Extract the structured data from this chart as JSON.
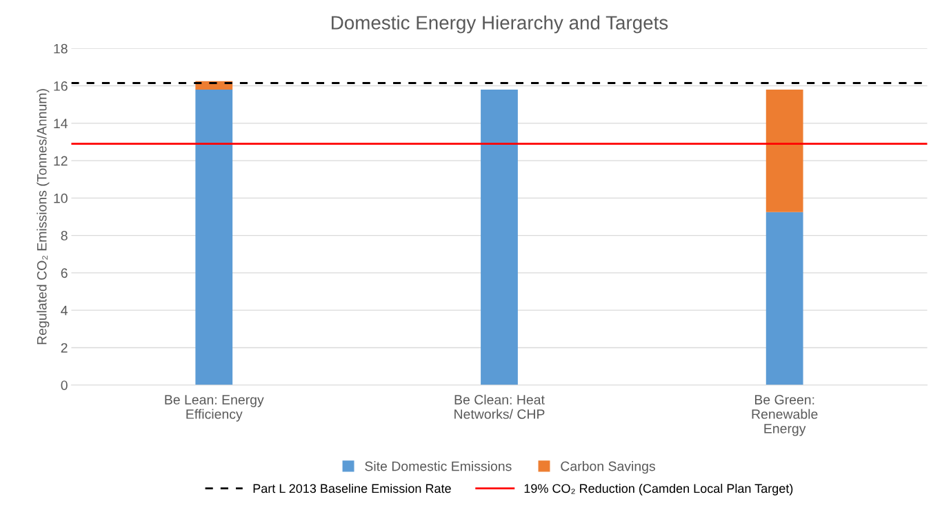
{
  "chart_data": {
    "type": "bar",
    "title": "Domestic Energy Hierarchy and Targets",
    "ylabel": "Regulated CO₂ Emissions (Tonnes/Annum)",
    "categories": [
      "Be Lean: Energy\nEfficiency",
      "Be Clean: Heat\nNetworks/ CHP",
      "Be Green:\nRenewable\nEnergy"
    ],
    "series": [
      {
        "name": "Site Domestic Emissions",
        "color": "#5b9bd5",
        "values": [
          15.8,
          15.8,
          9.25
        ]
      },
      {
        "name": "Carbon Savings",
        "color": "#ed7d31",
        "values": [
          0.45,
          null,
          6.55
        ]
      }
    ],
    "stacked": true,
    "ylim": [
      0,
      18
    ],
    "yticks": [
      0,
      2,
      4,
      6,
      8,
      10,
      12,
      14,
      16,
      18
    ],
    "ref_lines": [
      {
        "axis": "y",
        "value": 16.15,
        "label": "Part L 2013 Baseline Emission Rate",
        "color": "#000000",
        "line_style": "dashed"
      },
      {
        "axis": "y",
        "value": 12.9,
        "label": "19% CO₂ Reduction (Camden Local Plan Target)",
        "color": "#ff0000",
        "line_style": "solid"
      }
    ],
    "grid": "y",
    "legend": "bottom"
  }
}
